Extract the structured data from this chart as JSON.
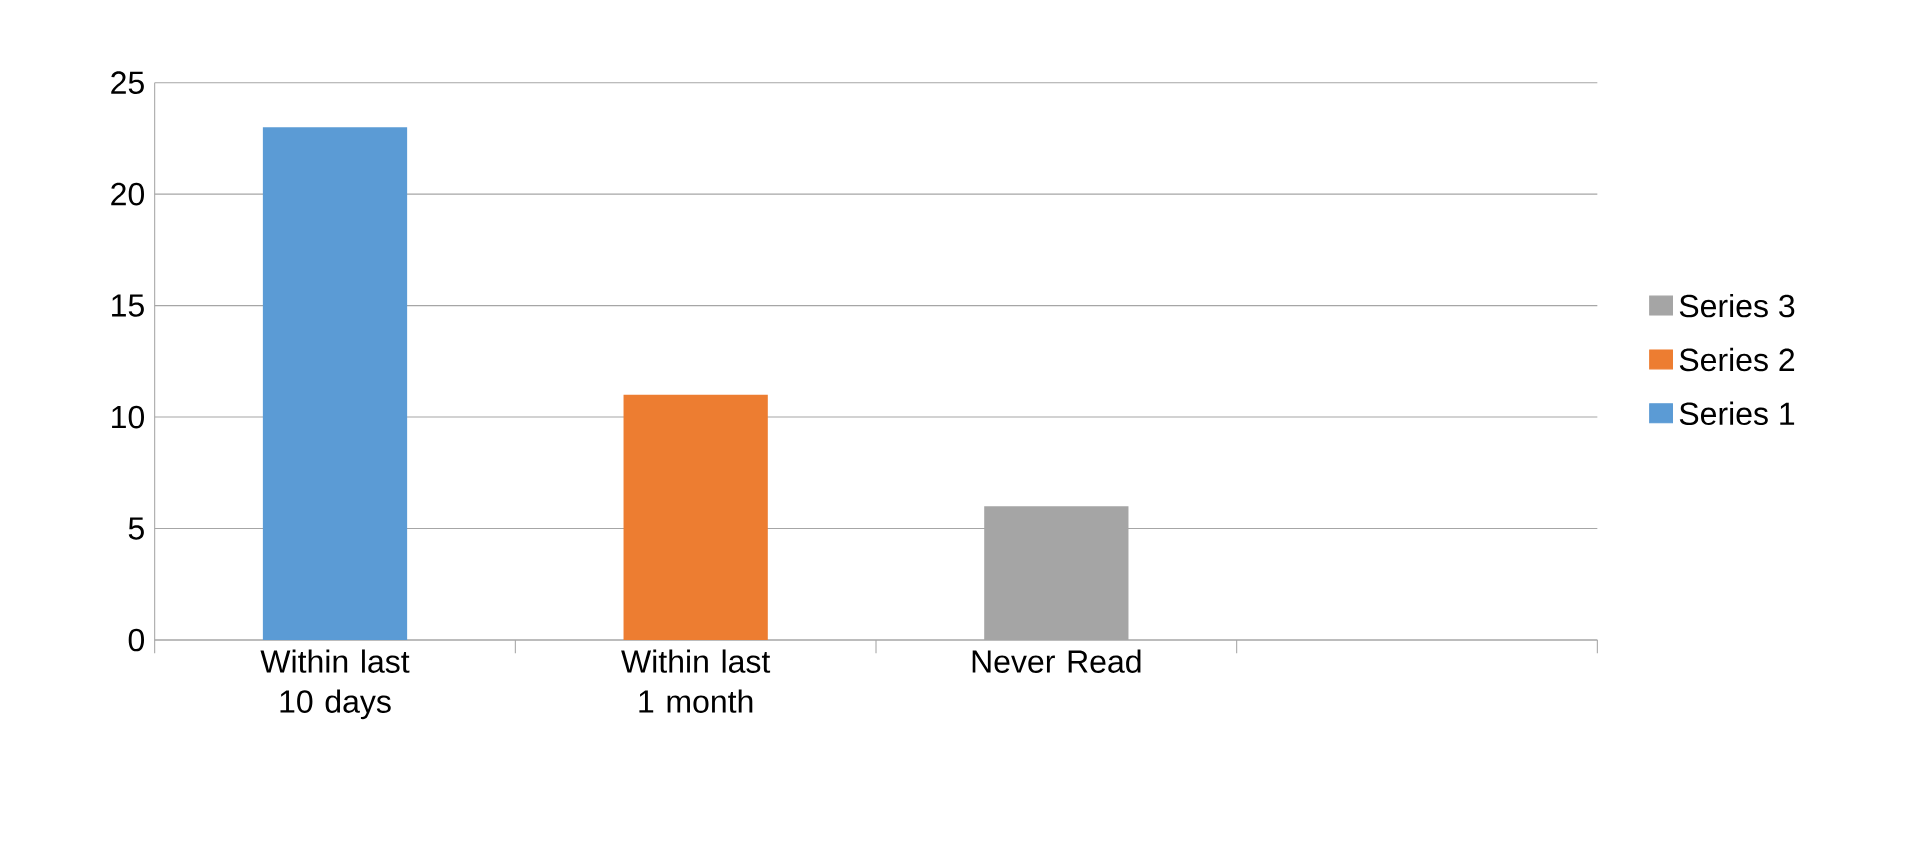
{
  "chart_data": {
    "type": "bar",
    "categories": [
      "Within last 10 days",
      "Within last 1 month",
      "Never Read",
      null
    ],
    "series": [
      {
        "name": "Series 1",
        "color": "#5b9bd5",
        "values": [
          23,
          null,
          null,
          null
        ]
      },
      {
        "name": "Series 2",
        "color": "#ed7d31",
        "values": [
          null,
          11,
          null,
          null
        ]
      },
      {
        "name": "Series 3",
        "color": "#a5a5a5",
        "values": [
          null,
          null,
          6,
          null
        ]
      }
    ],
    "ylim": [
      0,
      25
    ],
    "yticks": [
      0,
      5,
      10,
      15,
      20,
      25
    ],
    "grid": "y",
    "legend": "right"
  }
}
